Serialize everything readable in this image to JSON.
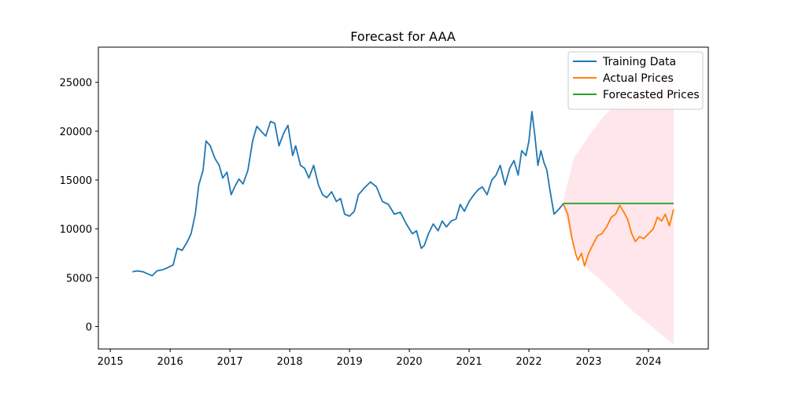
{
  "chart_data": {
    "type": "line",
    "title": "Forecast for AAA",
    "xlabel": "",
    "ylabel": "",
    "xlim": [
      2014.8,
      2025.0
    ],
    "ylim": [
      -2300,
      28600
    ],
    "x_ticks": [
      2015,
      2016,
      2017,
      2018,
      2019,
      2020,
      2021,
      2022,
      2023,
      2024
    ],
    "y_ticks": [
      0,
      5000,
      10000,
      15000,
      20000,
      25000
    ],
    "grid": false,
    "legend_position": "top-right",
    "series": [
      {
        "name": "Training Data",
        "color": "#1f77b4",
        "x": [
          2015.37,
          2015.45,
          2015.55,
          2015.62,
          2015.7,
          2015.78,
          2015.87,
          2015.95,
          2016.05,
          2016.12,
          2016.2,
          2016.28,
          2016.35,
          2016.42,
          2016.48,
          2016.55,
          2016.6,
          2016.67,
          2016.75,
          2016.82,
          2016.88,
          2016.95,
          2017.02,
          2017.08,
          2017.15,
          2017.22,
          2017.3,
          2017.38,
          2017.45,
          2017.52,
          2017.6,
          2017.68,
          2017.75,
          2017.82,
          2017.9,
          2017.97,
          2018.05,
          2018.1,
          2018.18,
          2018.25,
          2018.32,
          2018.4,
          2018.48,
          2018.55,
          2018.62,
          2018.7,
          2018.78,
          2018.85,
          2018.92,
          2019.0,
          2019.08,
          2019.15,
          2019.25,
          2019.35,
          2019.45,
          2019.55,
          2019.65,
          2019.75,
          2019.85,
          2019.95,
          2020.05,
          2020.12,
          2020.2,
          2020.25,
          2020.32,
          2020.4,
          2020.48,
          2020.55,
          2020.62,
          2020.7,
          2020.78,
          2020.85,
          2020.92,
          2021.0,
          2021.08,
          2021.15,
          2021.22,
          2021.3,
          2021.38,
          2021.45,
          2021.52,
          2021.6,
          2021.68,
          2021.75,
          2021.82,
          2021.88,
          2021.95,
          2022.0,
          2022.05,
          2022.1,
          2022.15,
          2022.2,
          2022.25,
          2022.3,
          2022.35,
          2022.42,
          2022.5,
          2022.58
        ],
        "y": [
          5600,
          5700,
          5600,
          5400,
          5200,
          5700,
          5800,
          6000,
          6300,
          8000,
          7800,
          8600,
          9500,
          11500,
          14500,
          16000,
          19000,
          18500,
          17200,
          16500,
          15200,
          15800,
          13500,
          14300,
          15100,
          14600,
          16000,
          19000,
          20500,
          20000,
          19500,
          21000,
          20800,
          18500,
          19800,
          20600,
          17500,
          18500,
          16500,
          16200,
          15200,
          16500,
          14500,
          13500,
          13200,
          13800,
          12800,
          13100,
          11500,
          11300,
          11800,
          13500,
          14200,
          14800,
          14300,
          12800,
          12500,
          11500,
          11700,
          10500,
          9500,
          9800,
          8000,
          8300,
          9500,
          10500,
          9800,
          10800,
          10200,
          10800,
          11000,
          12500,
          11800,
          12800,
          13500,
          14000,
          14300,
          13500,
          15000,
          15500,
          16500,
          14500,
          16200,
          17000,
          15500,
          18000,
          17500,
          19000,
          22000,
          19500,
          16500,
          18000,
          16800,
          16000,
          14000,
          11500,
          12000,
          12600
        ]
      },
      {
        "name": "Actual Prices",
        "color": "#ff7f0e",
        "x": [
          2022.58,
          2022.65,
          2022.72,
          2022.78,
          2022.82,
          2022.88,
          2022.93,
          2023.0,
          2023.08,
          2023.15,
          2023.22,
          2023.3,
          2023.38,
          2023.45,
          2023.52,
          2023.58,
          2023.65,
          2023.72,
          2023.78,
          2023.85,
          2023.92,
          2024.0,
          2024.08,
          2024.15,
          2024.22,
          2024.28,
          2024.35,
          2024.42
        ],
        "y": [
          12500,
          11500,
          9000,
          7500,
          6800,
          7500,
          6200,
          7500,
          8500,
          9300,
          9500,
          10200,
          11200,
          11500,
          12400,
          11800,
          11000,
          9500,
          8700,
          9200,
          9000,
          9500,
          10000,
          11200,
          10800,
          11500,
          10300,
          12000
        ]
      },
      {
        "name": "Forecasted Prices",
        "color": "#2ca02c",
        "x": [
          2022.58,
          2024.42
        ],
        "y": [
          12600,
          12600
        ]
      }
    ],
    "confidence_band": {
      "color": "#ffc0cb",
      "opacity": 0.4,
      "x": [
        2022.58,
        2022.75,
        2023.0,
        2023.25,
        2023.5,
        2023.75,
        2024.0,
        2024.25,
        2024.42
      ],
      "lower": [
        12000,
        8000,
        5800,
        4500,
        3000,
        1500,
        300,
        -1000,
        -1800
      ],
      "upper": [
        13000,
        17200,
        19500,
        21500,
        23000,
        24300,
        25500,
        26500,
        27000
      ]
    }
  }
}
